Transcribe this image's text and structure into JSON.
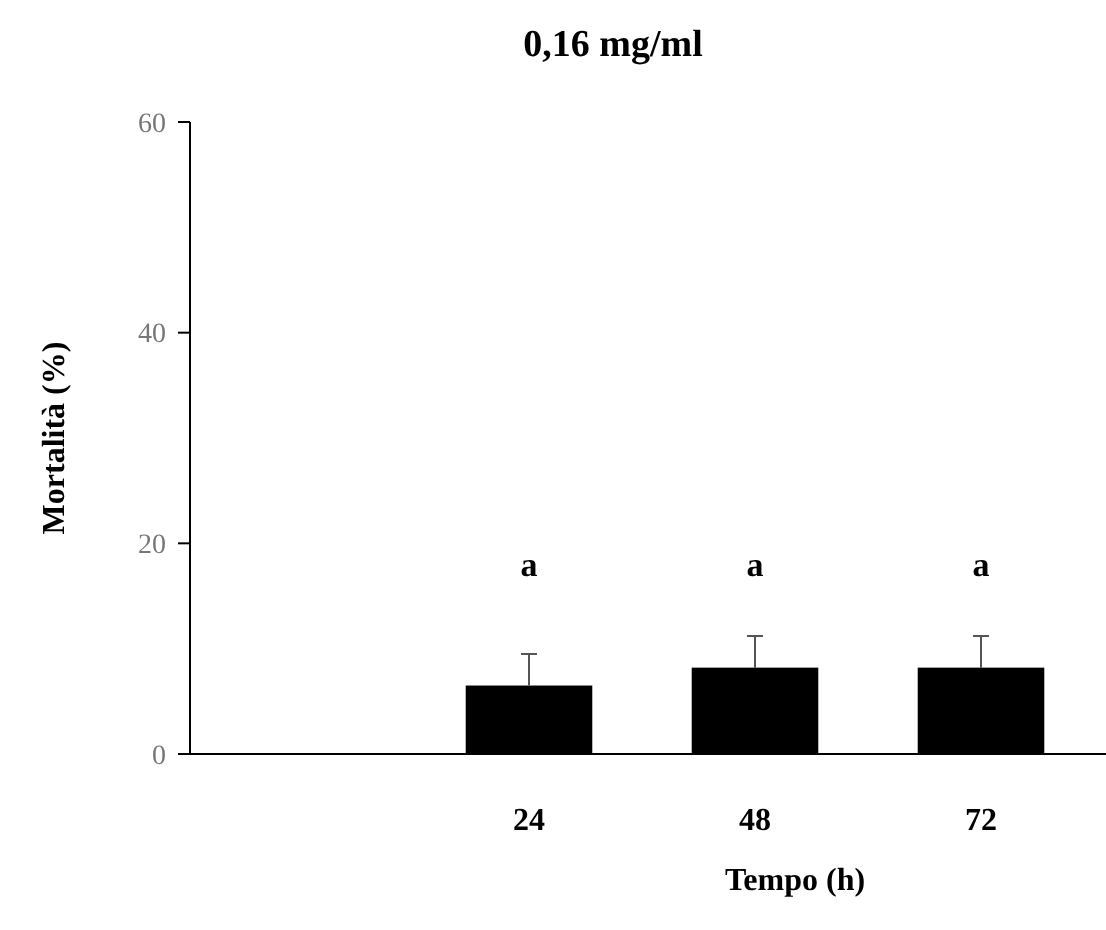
{
  "chart_data": {
    "type": "bar",
    "title": "0,16 mg/ml",
    "xlabel": "Tempo (h)",
    "ylabel": "Mortalità (%)",
    "categories": [
      null,
      "24",
      "48",
      "72"
    ],
    "values": [
      null,
      6.5,
      8.2,
      8.2
    ],
    "errors": [
      null,
      3,
      3,
      3
    ],
    "color": "#000000",
    "ylim": [
      0,
      60
    ],
    "yticks": [
      0,
      20,
      40,
      60
    ],
    "annotations": [
      "a",
      "a",
      "a"
    ]
  }
}
